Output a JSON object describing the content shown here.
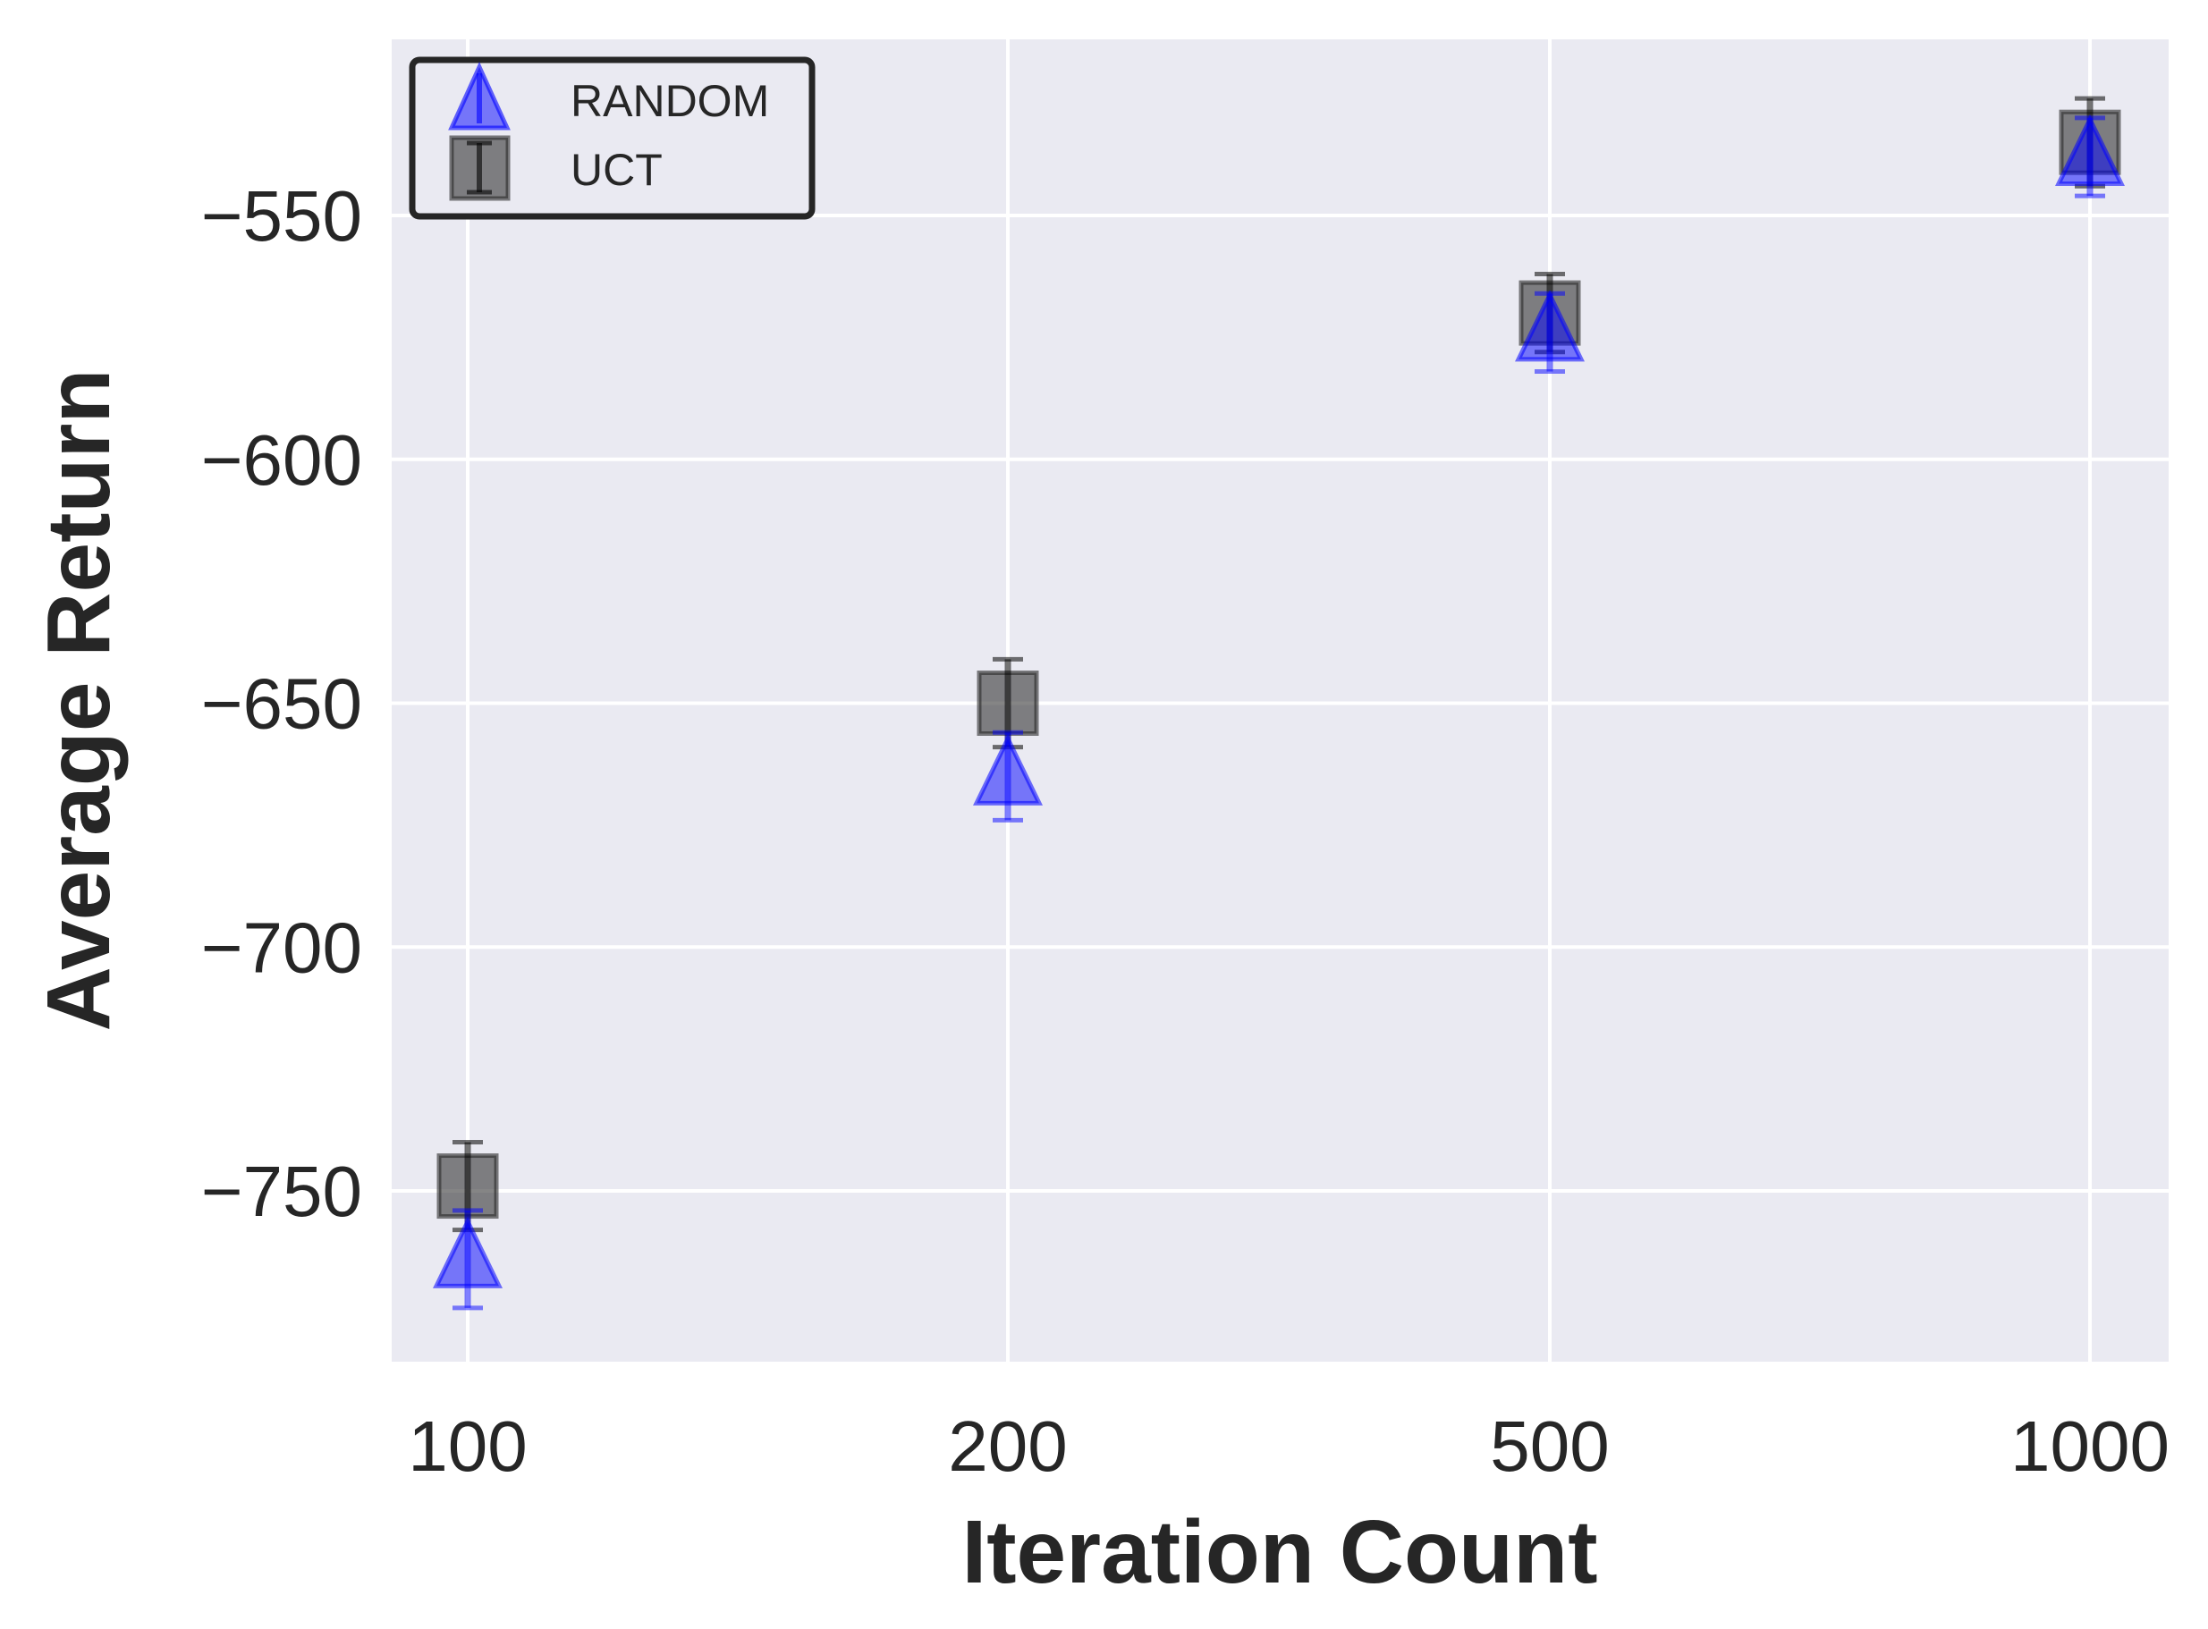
{
  "chart_data": {
    "type": "scatter",
    "title": "",
    "xlabel": "Iteration Count",
    "ylabel": "Average Return",
    "categories": [
      "100",
      "200",
      "500",
      "1000"
    ],
    "x_scale": "categorical",
    "yticks": [
      -550,
      -600,
      -650,
      -700,
      -750
    ],
    "ytick_labels": [
      "−550",
      "−600",
      "−650",
      "−700",
      "−750"
    ],
    "ylim": [
      -785,
      -515
    ],
    "grid": true,
    "legend_position": "upper left",
    "series": [
      {
        "name": "RANDOM",
        "marker": "triangle",
        "color": "#0000ff",
        "values": [
          -764,
          -665,
          -574,
          -538
        ],
        "errors": [
          10,
          9,
          8,
          8
        ]
      },
      {
        "name": "UCT",
        "marker": "square",
        "color": "#333333",
        "values": [
          -749,
          -650,
          -570,
          -535
        ],
        "errors": [
          9,
          9,
          8,
          9
        ]
      }
    ]
  },
  "legend": {
    "items": [
      "RANDOM",
      "UCT"
    ]
  },
  "axes": {
    "xlabel": "Iteration Count",
    "ylabel": "Average Return"
  }
}
